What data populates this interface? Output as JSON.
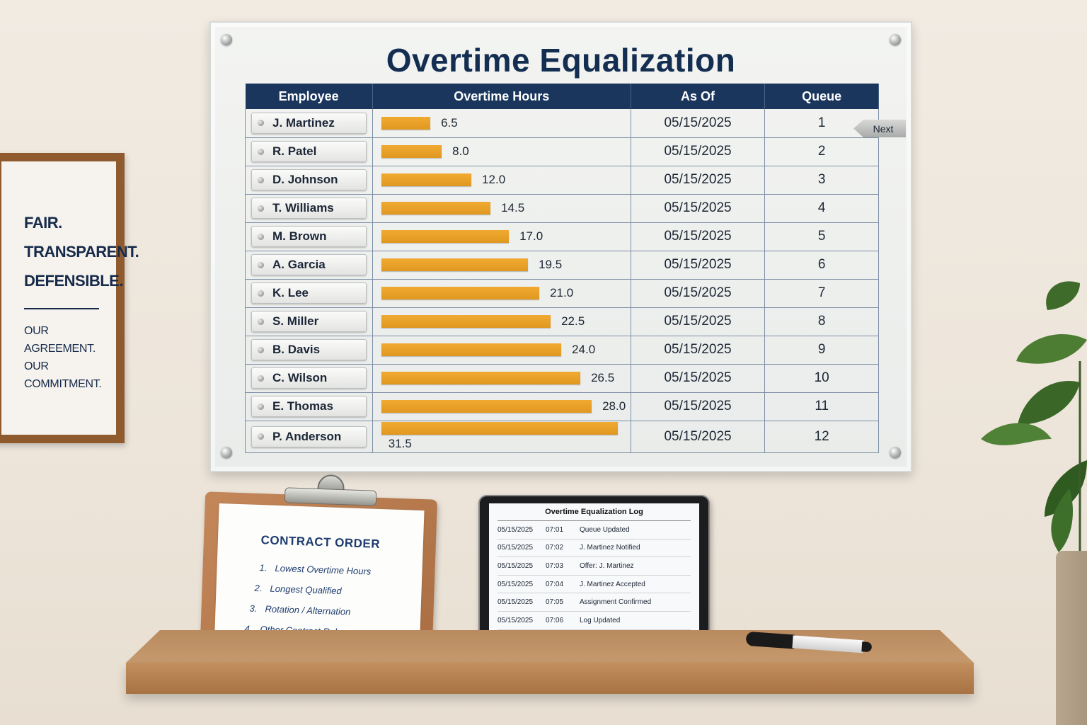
{
  "board": {
    "title": "Overtime Equalization",
    "headers": [
      "Employee",
      "Overtime Hours",
      "As Of",
      "Queue"
    ],
    "next_label": "Next",
    "rows": [
      {
        "name": "J. Martinez",
        "hours": "6.5",
        "as_of": "05/15/2025",
        "queue": "1"
      },
      {
        "name": "R. Patel",
        "hours": "8.0",
        "as_of": "05/15/2025",
        "queue": "2"
      },
      {
        "name": "D. Johnson",
        "hours": "12.0",
        "as_of": "05/15/2025",
        "queue": "3"
      },
      {
        "name": "T. Williams",
        "hours": "14.5",
        "as_of": "05/15/2025",
        "queue": "4"
      },
      {
        "name": "M. Brown",
        "hours": "17.0",
        "as_of": "05/15/2025",
        "queue": "5"
      },
      {
        "name": "A. Garcia",
        "hours": "19.5",
        "as_of": "05/15/2025",
        "queue": "6"
      },
      {
        "name": "K. Lee",
        "hours": "21.0",
        "as_of": "05/15/2025",
        "queue": "7"
      },
      {
        "name": "S. Miller",
        "hours": "22.5",
        "as_of": "05/15/2025",
        "queue": "8"
      },
      {
        "name": "B. Davis",
        "hours": "24.0",
        "as_of": "05/15/2025",
        "queue": "9"
      },
      {
        "name": "C. Wilson",
        "hours": "26.5",
        "as_of": "05/15/2025",
        "queue": "10"
      },
      {
        "name": "E. Thomas",
        "hours": "28.0",
        "as_of": "05/15/2025",
        "queue": "11"
      },
      {
        "name": "P. Anderson",
        "hours": "31.5",
        "as_of": "05/15/2025",
        "queue": "12"
      }
    ]
  },
  "poster": {
    "lines": [
      "FAIR.",
      "TRANSPARENT.",
      "DEFENSIBLE."
    ],
    "small_lines": [
      "OUR",
      "AGREEMENT.",
      "OUR",
      "COMMITMENT."
    ]
  },
  "clipboard": {
    "title": "CONTRACT ORDER",
    "items": [
      {
        "num": "1.",
        "text": "Lowest Overtime Hours"
      },
      {
        "num": "2.",
        "text": "Longest Qualified"
      },
      {
        "num": "3.",
        "text": "Rotation / Alternation"
      },
      {
        "num": "4.",
        "text": "Other Contract Rules"
      }
    ]
  },
  "tablet": {
    "title": "Overtime Equalization Log",
    "entries": [
      {
        "date": "05/15/2025",
        "time": "07:01",
        "event": "Queue Updated"
      },
      {
        "date": "05/15/2025",
        "time": "07:02",
        "event": "J. Martinez Notified"
      },
      {
        "date": "05/15/2025",
        "time": "07:03",
        "event": "Offer: J. Martinez"
      },
      {
        "date": "05/15/2025",
        "time": "07:04",
        "event": "J. Martinez Accepted"
      },
      {
        "date": "05/15/2025",
        "time": "07:05",
        "event": "Assignment Confirmed"
      },
      {
        "date": "05/15/2025",
        "time": "07:06",
        "event": "Log Updated"
      }
    ]
  },
  "colors": {
    "navy": "#1a365d",
    "bar_orange": "#e8a128",
    "wall": "#efe8de",
    "shelf_wood": "#c08b5a"
  }
}
